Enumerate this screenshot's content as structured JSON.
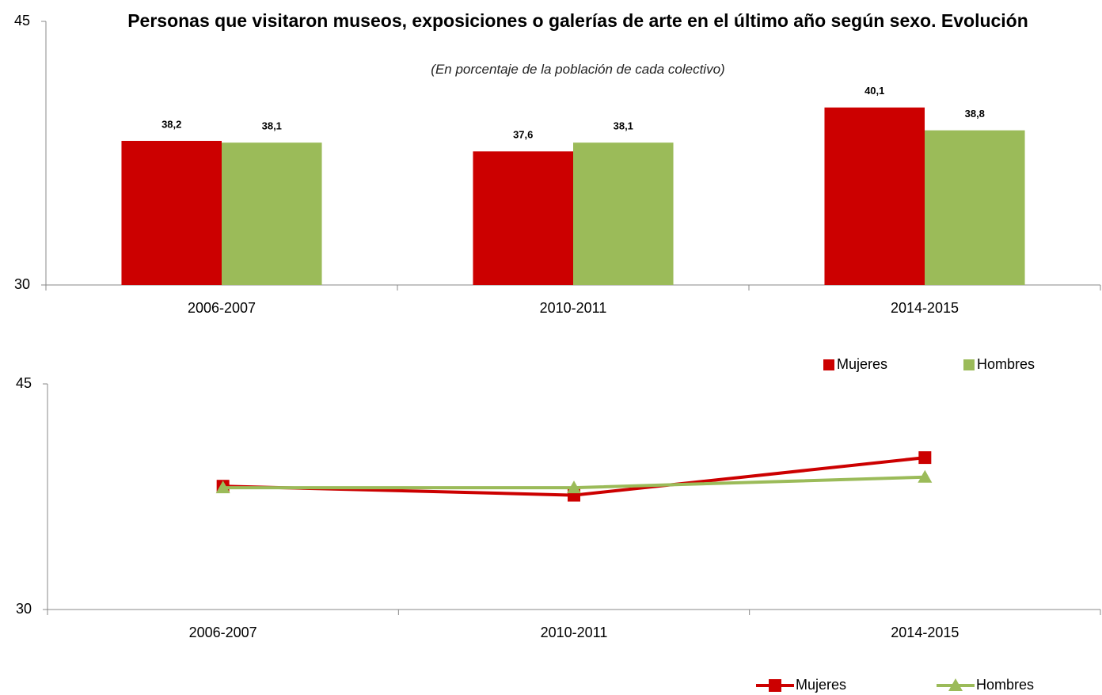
{
  "chart_data": [
    {
      "type": "bar",
      "title": "Personas que visitaron  museos, exposiciones o galerías de arte en el último año según sexo. Evolución",
      "subtitle": "(En porcentaje de la población de cada colectivo)",
      "categories": [
        "2006-2007",
        "2010-2011",
        "2014-2015"
      ],
      "series": [
        {
          "name": "Mujeres",
          "color": "#cc0000",
          "values": [
            38.2,
            37.6,
            40.1
          ],
          "value_labels": [
            "38,2",
            "37,6",
            "40,1"
          ]
        },
        {
          "name": "Hombres",
          "color": "#9bbb59",
          "values": [
            38.1,
            38.1,
            38.8
          ],
          "value_labels": [
            "38,1",
            "38,1",
            "38,8"
          ]
        }
      ],
      "ylim": [
        30,
        45
      ],
      "yticks": [
        30,
        45
      ]
    },
    {
      "type": "line",
      "categories": [
        "2006-2007",
        "2010-2011",
        "2014-2015"
      ],
      "series": [
        {
          "name": "Mujeres",
          "color": "#cc0000",
          "values": [
            38.2,
            37.6,
            40.1
          ]
        },
        {
          "name": "Hombres",
          "color": "#9bbb59",
          "values": [
            38.1,
            38.1,
            38.8
          ]
        }
      ],
      "ylim": [
        30,
        45
      ],
      "yticks": [
        30,
        45
      ]
    }
  ]
}
